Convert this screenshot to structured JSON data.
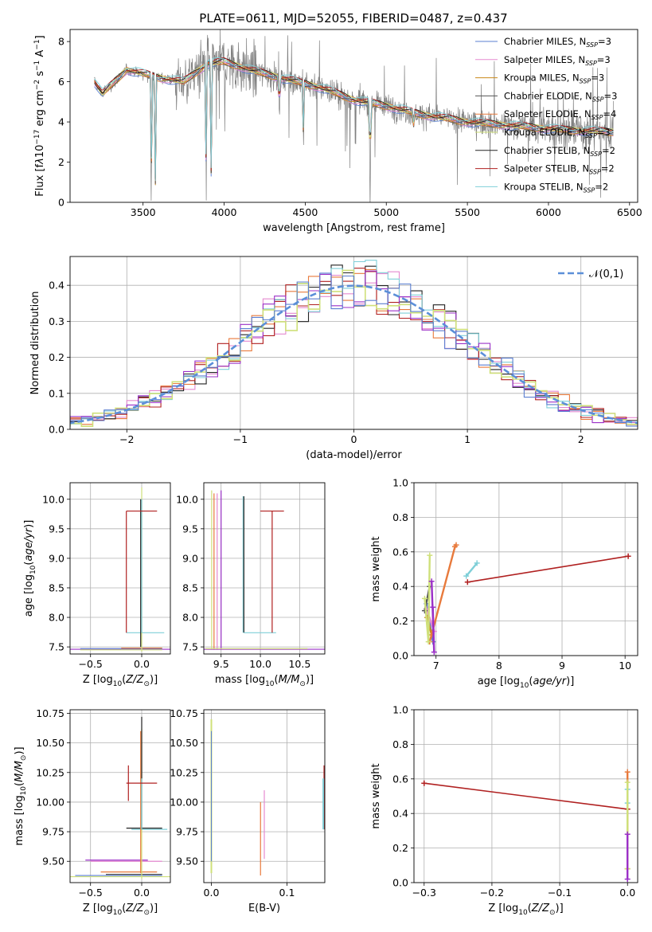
{
  "figure_title": "PLATE=0611, MJD=52055, FIBERID=0487, z=0.437",
  "colors": {
    "Chabrier MILES": "#5b7fd1",
    "Salpeter MILES": "#e58ad0",
    "Kroupa MILES": "#c98a1a",
    "Chabrier ELODIE": "#555555",
    "Salpeter ELODIE": "#e87a3c",
    "Kroupa ELODIE": "#cfe07a",
    "Chabrier STELIB": "#222222",
    "Salpeter STELIB": "#b02020",
    "Kroupa STELIB": "#7fcfd8",
    "purple": "#9b30c8",
    "gaussian": "#5b8fd8",
    "observed": "#808080"
  },
  "chart_data": [
    {
      "type": "line",
      "panel": "spectrum",
      "title": "PLATE=0611, MJD=52055, FIBERID=0487, z=0.437",
      "xlabel": "wavelength [Angstrom, rest frame]",
      "ylabel_html": "Flux [f<tspan font-style='italic'>λ</tspan>10<tspan dy='-5' font-size='9'>−17</tspan><tspan dy='5'> erg cm</tspan><tspan dy='-5' font-size='9'>−2</tspan><tspan dy='5'> s</tspan><tspan dy='-5' font-size='9'>−1</tspan><tspan dy='5'> A</tspan><tspan dy='-5' font-size='9'>−1</tspan><tspan dy='5'>]</tspan>",
      "xlim": [
        3050,
        6550
      ],
      "ylim": [
        0,
        8.6
      ],
      "xticks": [
        3500,
        4000,
        4500,
        5000,
        5500,
        6000,
        6500
      ],
      "yticks": [
        0,
        2,
        4,
        6,
        8
      ],
      "grid": false,
      "legend_position": "upper right",
      "legend": [
        {
          "name": "Chabrier MILES",
          "nssp": "3"
        },
        {
          "name": "Salpeter MILES",
          "nssp": "3"
        },
        {
          "name": "Kroupa MILES",
          "nssp": "3"
        },
        {
          "name": "Chabrier ELODIE",
          "nssp": "3"
        },
        {
          "name": "Salpeter ELODIE",
          "nssp": "4"
        },
        {
          "name": "Kroupa ELODIE",
          "nssp": "3"
        },
        {
          "name": "Chabrier STELIB",
          "nssp": "2"
        },
        {
          "name": "Salpeter STELIB",
          "nssp": "2"
        },
        {
          "name": "Kroupa STELIB",
          "nssp": "2"
        }
      ],
      "continuum_knots": [
        [
          3200,
          6.0
        ],
        [
          3250,
          5.4
        ],
        [
          3400,
          6.6
        ],
        [
          3600,
          6.2
        ],
        [
          3750,
          6.0
        ],
        [
          3900,
          6.9
        ],
        [
          4000,
          7.0
        ],
        [
          4200,
          6.5
        ],
        [
          4400,
          6.1
        ],
        [
          4600,
          5.7
        ],
        [
          4800,
          5.1
        ],
        [
          5000,
          4.8
        ],
        [
          5200,
          4.4
        ],
        [
          5500,
          4.0
        ],
        [
          5800,
          3.8
        ],
        [
          6100,
          3.6
        ],
        [
          6400,
          3.5
        ]
      ],
      "absorption_features": [
        [
          3550,
          0.0
        ],
        [
          3575,
          0.0
        ],
        [
          3890,
          0.0
        ],
        [
          3920,
          1.5
        ],
        [
          4340,
          4.0
        ],
        [
          4490,
          2.5
        ],
        [
          4900,
          0.0
        ],
        [
          5170,
          3.6
        ]
      ]
    },
    {
      "type": "histogram",
      "panel": "residuals",
      "xlabel": "(data-model)/error",
      "ylabel": "Normed distribution",
      "xlim": [
        -2.5,
        2.5
      ],
      "ylim": [
        0,
        0.48
      ],
      "xticks": [
        -2,
        -1,
        0,
        1,
        2
      ],
      "yticks": [
        0.0,
        0.1,
        0.2,
        0.3,
        0.4
      ],
      "grid": true,
      "legend_position": "upper right",
      "gaussian_label": "𝒩(0,1)",
      "bin_width": 0.1
    },
    {
      "type": "errorbar",
      "panel": "age_vs_Z",
      "xlabel_html": "Z [log<tspan dy='4' font-size='9'>10</tspan><tspan dy='-4'>(</tspan><tspan font-style='italic'>Z/Z</tspan><tspan dy='4' font-size='9'>⊙</tspan><tspan dy='-4'>)]</tspan>",
      "ylabel_html": "age  [log<tspan dy='4' font-size='9'>10</tspan><tspan dy='-4'>(</tspan><tspan font-style='italic'>age/yr</tspan>)]",
      "xlim": [
        -0.7,
        0.28
      ],
      "ylim": [
        7.38,
        10.28
      ],
      "xticks": [
        -0.5,
        0.0
      ],
      "yticks": [
        7.5,
        8.0,
        8.5,
        9.0,
        9.5,
        10.0
      ],
      "grid": true
    },
    {
      "type": "errorbar",
      "panel": "age_vs_mass",
      "xlabel_html": "mass [log<tspan dy='4' font-size='9'>10</tspan><tspan dy='-4'>(</tspan><tspan font-style='italic'>M/M</tspan><tspan dy='4' font-size='9'>⊙</tspan><tspan dy='-4'>)]</tspan>",
      "xlim": [
        9.28,
        10.82
      ],
      "ylim": [
        7.38,
        10.28
      ],
      "xticks": [
        9.5,
        10.0,
        10.5
      ],
      "yticks": [
        7.5,
        8.0,
        8.5,
        9.0,
        9.5,
        10.0
      ],
      "grid": true
    },
    {
      "type": "line",
      "panel": "weight_vs_age",
      "xlabel_html": "age  [log<tspan dy='4' font-size='9'>10</tspan><tspan dy='-4'>(</tspan><tspan font-style='italic'>age/yr</tspan>)]",
      "ylabel": "mass weight",
      "xlim": [
        6.65,
        10.2
      ],
      "ylim": [
        0.0,
        1.0
      ],
      "xticks": [
        7,
        8,
        9,
        10
      ],
      "yticks": [
        0.0,
        0.2,
        0.4,
        0.6,
        0.8,
        1.0
      ],
      "grid": true,
      "series": [
        {
          "name": "Chabrier MILES",
          "color": "#5b7fd1",
          "x": [
            6.85,
            6.95
          ],
          "y": [
            0.3,
            0.08
          ]
        },
        {
          "name": "Salpeter MILES",
          "color": "#e58ad0",
          "x": [
            6.85,
            6.97
          ],
          "y": [
            0.27,
            0.14
          ]
        },
        {
          "name": "Kroupa MILES",
          "color": "#c98a1a",
          "x": [
            6.86,
            6.93
          ],
          "y": [
            0.22,
            0.12
          ]
        },
        {
          "name": "Chabrier ELODIE",
          "color": "#555555",
          "x": [
            6.82,
            6.9
          ],
          "y": [
            0.26,
            0.4
          ]
        },
        {
          "name": "Salpeter ELODIE",
          "color": "#e87a3c",
          "x": [
            6.9,
            7.3,
            7.32
          ],
          "y": [
            0.08,
            0.63,
            0.64
          ]
        },
        {
          "name": "Kroupa ELODIE",
          "color": "#cfe07a",
          "x": [
            6.82,
            6.88,
            6.9
          ],
          "y": [
            0.33,
            0.08,
            0.58
          ]
        },
        {
          "name": "purple",
          "color": "#9b30c8",
          "x": [
            6.93,
            6.97,
            6.95
          ],
          "y": [
            0.43,
            0.02,
            0.28
          ]
        },
        {
          "name": "Salpeter STELIB",
          "color": "#b02020",
          "x": [
            7.5,
            10.05
          ],
          "y": [
            0.425,
            0.575
          ]
        },
        {
          "name": "Kroupa STELIB",
          "color": "#7fcfd8",
          "x": [
            7.48,
            7.65
          ],
          "y": [
            0.46,
            0.535
          ]
        }
      ]
    },
    {
      "type": "errorbar",
      "panel": "mass_vs_Z",
      "xlabel_html": "Z [log<tspan dy='4' font-size='9'>10</tspan><tspan dy='-4'>(</tspan><tspan font-style='italic'>Z/Z</tspan><tspan dy='4' font-size='9'>⊙</tspan><tspan dy='-4'>)]</tspan>",
      "ylabel_html": "mass [log<tspan dy='4' font-size='9'>10</tspan><tspan dy='-4'>(</tspan><tspan font-style='italic'>M/M</tspan><tspan dy='4' font-size='9'>⊙</tspan><tspan dy='-4'>)]</tspan>",
      "xlim": [
        -0.7,
        0.28
      ],
      "ylim": [
        9.32,
        10.78
      ],
      "xticks": [
        -0.5,
        0.0
      ],
      "yticks": [
        9.5,
        9.75,
        10.0,
        10.25,
        10.5,
        10.75
      ],
      "grid": true
    },
    {
      "type": "errorbar",
      "panel": "mass_vs_EBV",
      "xlabel": "E(B-V)",
      "xlim": [
        -0.01,
        0.15
      ],
      "ylim": [
        9.32,
        10.78
      ],
      "xticks": [
        0.0,
        0.1
      ],
      "yticks": [
        9.5,
        9.75,
        10.0,
        10.25,
        10.5,
        10.75
      ],
      "grid": true
    },
    {
      "type": "line",
      "panel": "weight_vs_Z",
      "xlabel_html": "Z [log<tspan dy='4' font-size='9'>10</tspan><tspan dy='-4'>(</tspan><tspan font-style='italic'>Z/Z</tspan><tspan dy='4' font-size='9'>⊙</tspan><tspan dy='-4'>)]</tspan>",
      "ylabel": "mass weight",
      "xlim": [
        -0.315,
        0.015
      ],
      "ylim": [
        0.0,
        1.0
      ],
      "xticks": [
        -0.3,
        -0.2,
        -0.1,
        0.0
      ],
      "yticks": [
        0.0,
        0.2,
        0.4,
        0.6,
        0.8,
        1.0
      ],
      "grid": true,
      "series": [
        {
          "name": "Salpeter STELIB",
          "color": "#b02020",
          "x": [
            -0.3,
            0.0
          ],
          "y": [
            0.575,
            0.425
          ]
        },
        {
          "name": "Salpeter ELODIE",
          "color": "#e87a3c",
          "x": [
            0.0,
            0.0
          ],
          "y": [
            0.64,
            0.08
          ]
        },
        {
          "name": "Kroupa STELIB",
          "color": "#7fcfd8",
          "x": [
            0.0,
            0.0
          ],
          "y": [
            0.54,
            0.46
          ]
        },
        {
          "name": "Kroupa ELODIE",
          "color": "#cfe07a",
          "x": [
            0.0,
            0.0
          ],
          "y": [
            0.58,
            0.08
          ]
        },
        {
          "name": "purple",
          "color": "#9b30c8",
          "x": [
            0.0,
            0.0
          ],
          "y": [
            0.28,
            0.02
          ]
        }
      ]
    }
  ]
}
